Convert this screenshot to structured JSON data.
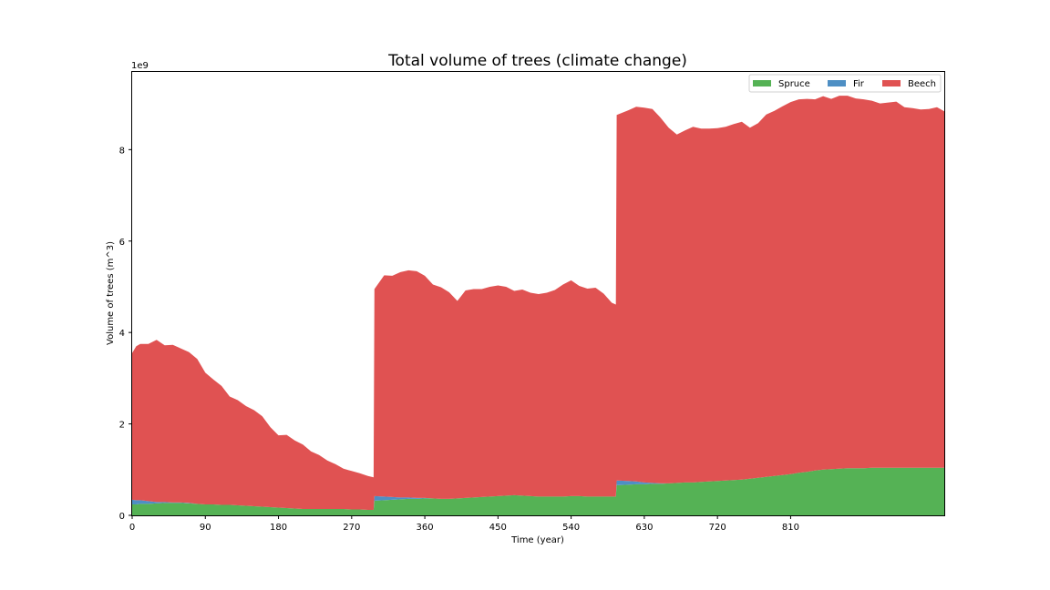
{
  "chart_data": {
    "type": "area",
    "stacked": true,
    "title": "Total volume of trees (climate change)",
    "xlabel": "Time (year)",
    "ylabel": "Volume of trees (m^3)",
    "y_offset_label": "1e9",
    "xlim": [
      0,
      999
    ],
    "ylim": [
      0,
      9.7
    ],
    "xticks": [
      0,
      90,
      180,
      270,
      360,
      450,
      540,
      630,
      720,
      810
    ],
    "yticks": [
      0,
      2,
      4,
      6,
      8
    ],
    "legend_position": "upper-right",
    "x": [
      0,
      5,
      10,
      20,
      30,
      40,
      50,
      60,
      70,
      80,
      90,
      100,
      110,
      120,
      130,
      140,
      150,
      160,
      170,
      180,
      190,
      200,
      210,
      220,
      230,
      240,
      250,
      260,
      270,
      280,
      290,
      297,
      298,
      310,
      320,
      330,
      340,
      350,
      360,
      370,
      380,
      390,
      400,
      410,
      420,
      430,
      440,
      450,
      460,
      470,
      480,
      490,
      500,
      510,
      520,
      530,
      540,
      550,
      560,
      570,
      580,
      590,
      595,
      596,
      610,
      620,
      630,
      640,
      650,
      660,
      670,
      680,
      690,
      700,
      710,
      720,
      730,
      740,
      750,
      760,
      770,
      780,
      790,
      800,
      810,
      820,
      830,
      840,
      850,
      860,
      870,
      880,
      890,
      900,
      910,
      920,
      930,
      940,
      950,
      960,
      970,
      980,
      990,
      999
    ],
    "series": [
      {
        "name": "Spruce",
        "color": "#55b255",
        "values": [
          0.24,
          0.24,
          0.25,
          0.25,
          0.26,
          0.27,
          0.27,
          0.27,
          0.26,
          0.25,
          0.24,
          0.24,
          0.23,
          0.23,
          0.22,
          0.21,
          0.2,
          0.19,
          0.18,
          0.17,
          0.16,
          0.15,
          0.14,
          0.14,
          0.14,
          0.14,
          0.14,
          0.14,
          0.13,
          0.13,
          0.12,
          0.12,
          0.32,
          0.33,
          0.34,
          0.35,
          0.36,
          0.36,
          0.37,
          0.37,
          0.36,
          0.36,
          0.37,
          0.38,
          0.39,
          0.4,
          0.41,
          0.42,
          0.43,
          0.44,
          0.43,
          0.42,
          0.41,
          0.41,
          0.41,
          0.41,
          0.42,
          0.42,
          0.41,
          0.41,
          0.41,
          0.41,
          0.41,
          0.66,
          0.67,
          0.68,
          0.68,
          0.69,
          0.69,
          0.7,
          0.71,
          0.72,
          0.72,
          0.73,
          0.74,
          0.75,
          0.76,
          0.77,
          0.78,
          0.8,
          0.82,
          0.84,
          0.86,
          0.88,
          0.9,
          0.93,
          0.95,
          0.98,
          1.0,
          1.01,
          1.02,
          1.03,
          1.03,
          1.03,
          1.04,
          1.04,
          1.04,
          1.04,
          1.04,
          1.04,
          1.04,
          1.04,
          1.04,
          1.04
        ]
      },
      {
        "name": "Fir",
        "color": "#4e8fc4",
        "values": [
          0.1,
          0.09,
          0.08,
          0.06,
          0.03,
          0.02,
          0.01,
          0.01,
          0.01,
          0.0,
          0.0,
          0.0,
          0.0,
          0.0,
          0.0,
          0.0,
          0.0,
          0.0,
          0.0,
          0.0,
          0.0,
          0.0,
          0.0,
          0.0,
          0.0,
          0.0,
          0.0,
          0.0,
          0.0,
          0.0,
          0.0,
          0.0,
          0.1,
          0.08,
          0.06,
          0.04,
          0.03,
          0.02,
          0.01,
          0.0,
          0.0,
          0.0,
          0.0,
          0.0,
          0.0,
          0.0,
          0.0,
          0.0,
          0.0,
          0.0,
          0.0,
          0.0,
          0.0,
          0.0,
          0.0,
          0.0,
          0.0,
          0.0,
          0.0,
          0.0,
          0.0,
          0.0,
          0.0,
          0.1,
          0.08,
          0.06,
          0.04,
          0.02,
          0.01,
          0.0,
          0.0,
          0.0,
          0.0,
          0.0,
          0.0,
          0.0,
          0.0,
          0.0,
          0.0,
          0.0,
          0.0,
          0.0,
          0.0,
          0.0,
          0.0,
          0.0,
          0.0,
          0.0,
          0.0,
          0.0,
          0.0,
          0.0,
          0.0,
          0.0,
          0.0,
          0.0,
          0.0,
          0.0,
          0.0,
          0.0,
          0.0,
          0.0,
          0.0,
          0.0
        ]
      },
      {
        "name": "Beech",
        "color": "#e05252",
        "values": [
          3.21,
          3.37,
          3.42,
          3.44,
          3.55,
          3.43,
          3.45,
          3.37,
          3.3,
          3.17,
          2.88,
          2.73,
          2.6,
          2.37,
          2.3,
          2.18,
          2.1,
          1.98,
          1.75,
          1.58,
          1.6,
          1.49,
          1.41,
          1.26,
          1.18,
          1.06,
          0.98,
          0.88,
          0.84,
          0.79,
          0.74,
          0.71,
          4.53,
          4.84,
          4.84,
          4.93,
          4.97,
          4.96,
          4.86,
          4.68,
          4.63,
          4.52,
          4.32,
          4.54,
          4.56,
          4.55,
          4.59,
          4.61,
          4.57,
          4.47,
          4.51,
          4.45,
          4.43,
          4.46,
          4.52,
          4.64,
          4.72,
          4.6,
          4.55,
          4.57,
          4.44,
          4.24,
          4.2,
          8.0,
          8.11,
          8.2,
          8.2,
          8.18,
          8.0,
          7.78,
          7.62,
          7.7,
          7.78,
          7.73,
          7.72,
          7.72,
          7.74,
          7.79,
          7.83,
          7.68,
          7.76,
          7.93,
          7.99,
          8.07,
          8.14,
          8.17,
          8.16,
          8.12,
          8.17,
          8.1,
          8.16,
          8.15,
          8.09,
          8.07,
          8.03,
          7.97,
          7.99,
          8.01,
          7.89,
          7.87,
          7.84,
          7.85,
          7.89,
          7.8
        ]
      }
    ]
  }
}
